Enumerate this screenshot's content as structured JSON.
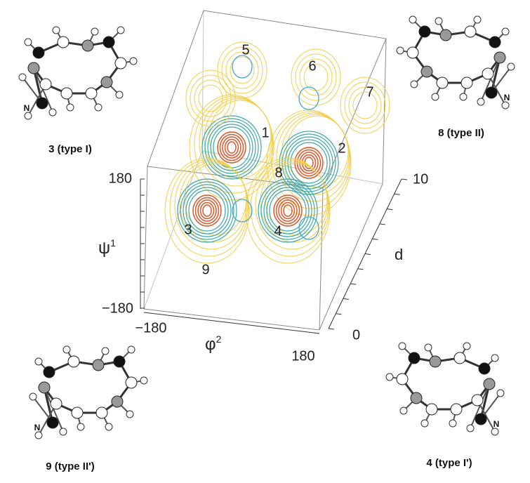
{
  "plot": {
    "regions": [
      "5",
      "6",
      "7",
      "1",
      "2",
      "8",
      "3",
      "4",
      "9"
    ],
    "y_axis": {
      "symbol": "ψ",
      "superscript": "1",
      "top": "180",
      "bottom": "−180"
    },
    "x_axis": {
      "symbol": "φ",
      "superscript": "2",
      "left": "−180",
      "right": "180"
    },
    "d_axis": {
      "label": "d",
      "top": "10",
      "bottom": "0"
    }
  },
  "molecules": [
    {
      "caption": "3 (type I)",
      "terminal": "N"
    },
    {
      "caption": "8 (type II)",
      "terminal": "N"
    },
    {
      "caption": "9 (type II')",
      "terminal": "N"
    },
    {
      "caption": "4 (type I')",
      "terminal": "N"
    }
  ]
}
